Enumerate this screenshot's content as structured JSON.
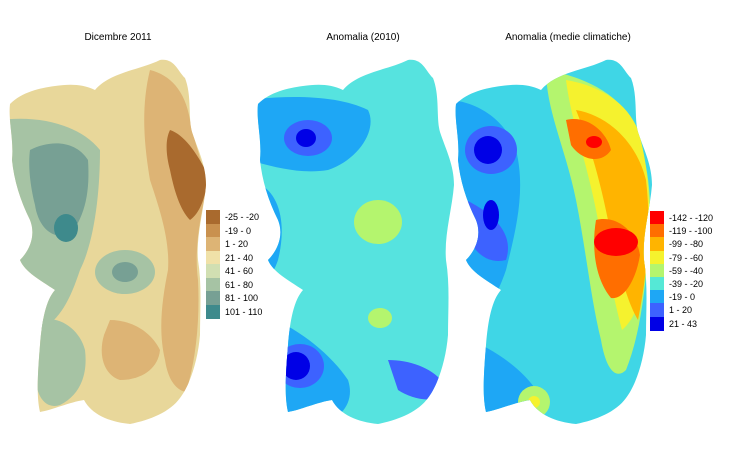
{
  "maps": [
    {
      "id": "rainfall",
      "title": "Dicembre 2011",
      "land_color": "#e8d79a",
      "legend": [
        {
          "label": "-25 - -20",
          "color": "#a96a2e"
        },
        {
          "label": "-19 - 0",
          "color": "#c9914f"
        },
        {
          "label": "1 - 20",
          "color": "#ddb475"
        },
        {
          "label": "21 - 40",
          "color": "#f0e1a8"
        },
        {
          "label": "41 - 60",
          "color": "#d1dfb2"
        },
        {
          "label": "61 - 80",
          "color": "#a6c3a4"
        },
        {
          "label": "81 - 100",
          "color": "#77a094"
        },
        {
          "label": "101 - 110",
          "color": "#3e8a8c"
        }
      ]
    },
    {
      "id": "anomaly-2010",
      "title": "Anomalia (2010)",
      "land_color": "#56e3df",
      "legend": []
    },
    {
      "id": "anomaly-climate",
      "title": "Anomalia (medie climatiche)",
      "land_color": "#3fd6e6",
      "legend": [
        {
          "label": "-142 - -120",
          "color": "#ff0000"
        },
        {
          "label": "-119 - -100",
          "color": "#ff6e00"
        },
        {
          "label": "-99 - -80",
          "color": "#ffb400"
        },
        {
          "label": "-79 - -60",
          "color": "#f5f22e"
        },
        {
          "label": "-59 - -40",
          "color": "#b4f56e"
        },
        {
          "label": "-39 - -20",
          "color": "#55e8d6"
        },
        {
          "label": "-19 - 0",
          "color": "#1ea7f5"
        },
        {
          "label": "1 - 20",
          "color": "#3d62ff"
        },
        {
          "label": "21 - 43",
          "color": "#0000e6"
        }
      ]
    }
  ]
}
